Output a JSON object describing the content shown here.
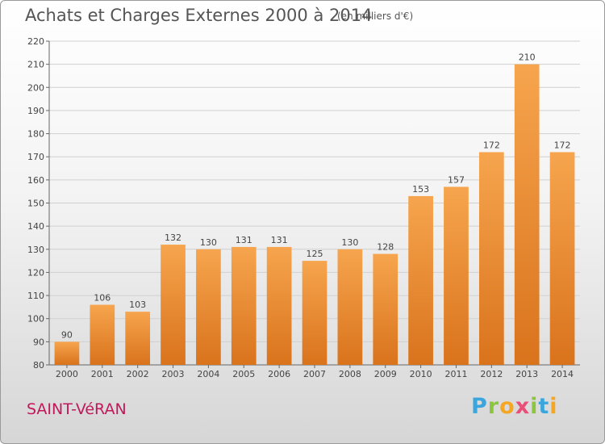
{
  "header": {
    "title": "Achats et Charges Externes 2000 à 2014",
    "subtitle": "(en milliers d'€)"
  },
  "footer": {
    "place": "SAINT-VéRAN",
    "brand": "Proxiti"
  },
  "colors": {
    "bar_top": "#f6a54e",
    "bar_bottom": "#d9731c",
    "place_text": "#c2185b"
  },
  "chart_data": {
    "type": "bar",
    "title": "Achats et Charges Externes 2000 à 2014",
    "subtitle": "(en milliers d'€)",
    "xlabel": "",
    "ylabel": "",
    "categories": [
      "2000",
      "2001",
      "2002",
      "2003",
      "2004",
      "2005",
      "2006",
      "2007",
      "2008",
      "2009",
      "2010",
      "2011",
      "2012",
      "2013",
      "2014"
    ],
    "values": [
      90,
      106,
      103,
      132,
      130,
      131,
      131,
      125,
      130,
      128,
      153,
      157,
      172,
      210,
      172
    ],
    "ylim": [
      80,
      220
    ],
    "yticks": [
      80,
      90,
      100,
      110,
      120,
      130,
      140,
      150,
      160,
      170,
      180,
      190,
      200,
      210,
      220
    ],
    "grid": true,
    "data_labels": true
  }
}
